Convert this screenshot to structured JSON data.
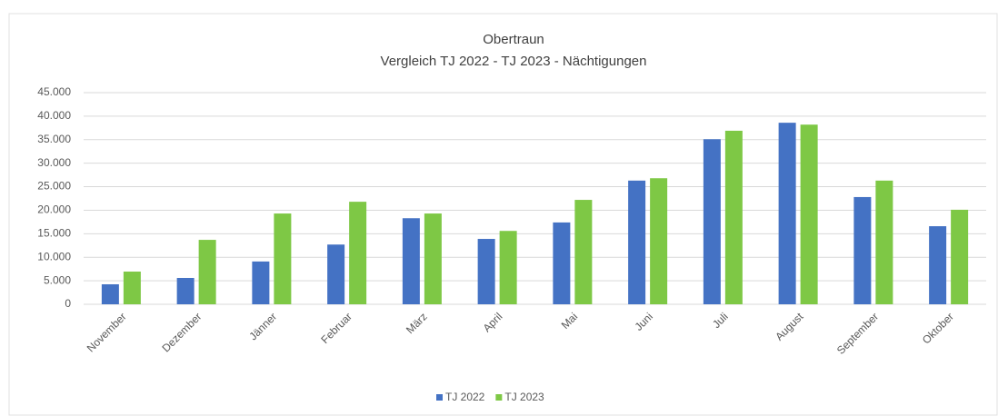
{
  "chart_data": {
    "type": "bar",
    "title": "Obertraun",
    "subtitle": "Vergleich TJ 2022 - TJ 2023 - Nächtigungen",
    "categories": [
      "November",
      "Dezember",
      "Jänner",
      "Februar",
      "März",
      "April",
      "Mai",
      "Juni",
      "Juli",
      "August",
      "September",
      "Oktober"
    ],
    "series": [
      {
        "name": "TJ 2022",
        "color": "#4472c4",
        "values": [
          4250,
          5600,
          9100,
          12700,
          18300,
          13900,
          17400,
          26300,
          35100,
          38600,
          22800,
          16600
        ]
      },
      {
        "name": "TJ 2023",
        "color": "#7ec845",
        "values": [
          6950,
          13700,
          19300,
          21800,
          19300,
          15600,
          22200,
          26800,
          36900,
          38200,
          26300,
          20100
        ]
      }
    ],
    "ylim": [
      0,
      45000
    ],
    "yticks": [
      0,
      {
        "value": 5000,
        "label": "5.000"
      },
      {
        "value": 10000,
        "label": "10.000"
      },
      {
        "value": 15000,
        "label": "15.000"
      },
      {
        "value": 20000,
        "label": "20.000"
      },
      {
        "value": 25000,
        "label": "25.000"
      },
      {
        "value": 30000,
        "label": "30.000"
      },
      {
        "value": 35000,
        "label": "35.000"
      },
      {
        "value": 40000,
        "label": "40.000"
      },
      {
        "value": 45000,
        "label": "45.000"
      }
    ],
    "grid": true,
    "legend": "bottom"
  }
}
